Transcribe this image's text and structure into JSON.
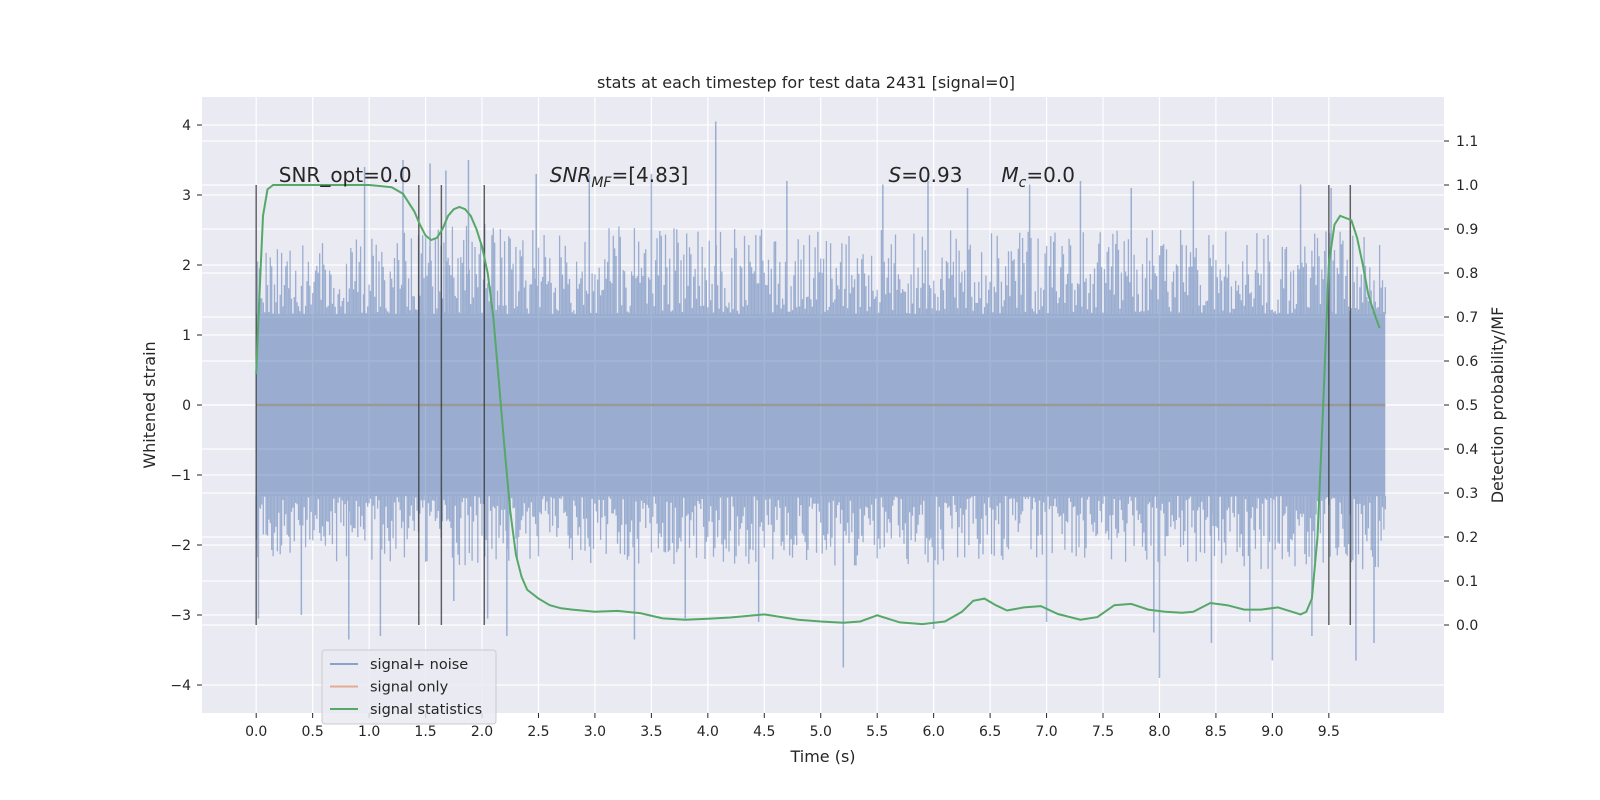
{
  "chart_data": {
    "type": "line",
    "title": "stats at each timestep for test data 2431 [signal=0]",
    "xlabel": "Time (s)",
    "ylabel_left": "Whitened strain",
    "ylabel_right": "Detection probability/MF",
    "xlim": [
      -0.48,
      10.52
    ],
    "ylim_left": [
      -4.4,
      4.4
    ],
    "ylim_right": [
      -0.2,
      1.2
    ],
    "x_ticks": [
      0.0,
      0.5,
      1.0,
      1.5,
      2.0,
      2.5,
      3.0,
      3.5,
      4.0,
      4.5,
      5.0,
      5.5,
      6.0,
      6.5,
      7.0,
      7.5,
      8.0,
      8.5,
      9.0,
      9.5
    ],
    "x_tick_labels": [
      "0.0",
      "0.5",
      "1.0",
      "1.5",
      "2.0",
      "2.5",
      "3.0",
      "3.5",
      "4.0",
      "4.5",
      "5.0",
      "5.5",
      "6.0",
      "6.5",
      "7.0",
      "7.5",
      "8.0",
      "8.5",
      "9.0",
      "9.5"
    ],
    "y_ticks_left": [
      -4,
      -3,
      -2,
      -1,
      0,
      1,
      2,
      3,
      4
    ],
    "y_tick_labels_left": [
      "−4",
      "−3",
      "−2",
      "−1",
      "0",
      "1",
      "2",
      "3",
      "4"
    ],
    "y_ticks_right": [
      0.0,
      0.1,
      0.2,
      0.3,
      0.4,
      0.5,
      0.6,
      0.7,
      0.8,
      0.9,
      1.0,
      1.1
    ],
    "y_tick_labels_right": [
      "0.0",
      "0.1",
      "0.2",
      "0.3",
      "0.4",
      "0.5",
      "0.6",
      "0.7",
      "0.8",
      "0.9",
      "1.0",
      "1.1"
    ],
    "grid": true,
    "legend_position": "lower-left",
    "annotations": [
      {
        "text": "SNR_opt=0.0",
        "x": 0.2,
        "y_right": 1.0
      },
      {
        "text_parts": [
          "SNR",
          "MF",
          "=[4.83]"
        ],
        "x": 2.6,
        "y_right": 1.0
      },
      {
        "text_parts": [
          "S",
          "=0.93"
        ],
        "x": 5.6,
        "y_right": 1.0
      },
      {
        "text_parts": [
          "M",
          "c",
          "=0.0"
        ],
        "x": 6.6,
        "y_right": 1.0
      }
    ],
    "series": [
      {
        "name": "signal+ noise",
        "color": "#4c72b0",
        "axis": "left",
        "kind": "noise_band",
        "x_range": [
          0.0,
          10.0
        ],
        "core_range": [
          -1.3,
          1.3
        ],
        "envelope_upper": [
          [
            0.0,
            2.2
          ],
          [
            2.0,
            2.6
          ],
          [
            5.0,
            2.5
          ],
          [
            8.0,
            2.5
          ],
          [
            10.0,
            2.5
          ]
        ],
        "envelope_lower": [
          [
            0.0,
            -2.2
          ],
          [
            2.0,
            -2.3
          ],
          [
            5.0,
            -2.3
          ],
          [
            8.0,
            -2.3
          ],
          [
            10.0,
            -2.4
          ]
        ],
        "spikes": [
          [
            0.02,
            -3.05
          ],
          [
            0.03,
            1.95
          ],
          [
            0.96,
            3.4
          ],
          [
            1.54,
            3.45
          ],
          [
            1.88,
            3.5
          ],
          [
            1.75,
            -2.8
          ],
          [
            2.22,
            -3.3
          ],
          [
            3.35,
            -3.35
          ],
          [
            4.07,
            4.05
          ],
          [
            5.2,
            -3.75
          ],
          [
            6.0,
            -3.2
          ],
          [
            8.0,
            -3.9
          ],
          [
            8.46,
            -3.4
          ],
          [
            9.0,
            -3.65
          ],
          [
            9.52,
            3.1
          ],
          [
            9.74,
            -3.65
          ],
          [
            9.9,
            -3.4
          ],
          [
            0.82,
            -3.35
          ],
          [
            1.1,
            -3.3
          ],
          [
            1.3,
            3.5
          ],
          [
            1.68,
            3.35
          ],
          [
            2.05,
            -3.05
          ],
          [
            2.48,
            3.3
          ],
          [
            2.95,
            3.3
          ],
          [
            3.5,
            3.3
          ],
          [
            4.45,
            -3.1
          ],
          [
            5.55,
            3.15
          ],
          [
            6.3,
            3.1
          ],
          [
            6.85,
            3.15
          ],
          [
            7.3,
            3.2
          ],
          [
            7.75,
            3.1
          ],
          [
            8.3,
            3.2
          ],
          [
            8.8,
            -3.1
          ],
          [
            9.25,
            3.15
          ],
          [
            0.4,
            -3.0
          ],
          [
            3.8,
            -3.05
          ],
          [
            4.7,
            3.2
          ],
          [
            5.95,
            3.2
          ],
          [
            7.0,
            -3.1
          ],
          [
            7.95,
            -3.25
          ],
          [
            9.35,
            -3.3
          ]
        ]
      },
      {
        "name": "signal only",
        "color": "#dd8452",
        "axis": "left",
        "x": [
          0.0,
          10.0
        ],
        "y": [
          0.0,
          0.0
        ]
      },
      {
        "name": "signal statistics",
        "color": "#55a868",
        "axis": "right",
        "x": [
          0.0,
          0.02,
          0.06,
          0.1,
          0.15,
          0.2,
          0.3,
          0.5,
          0.8,
          1.0,
          1.2,
          1.3,
          1.4,
          1.45,
          1.5,
          1.55,
          1.6,
          1.65,
          1.7,
          1.75,
          1.8,
          1.85,
          1.9,
          1.95,
          2.0,
          2.05,
          2.1,
          2.15,
          2.2,
          2.25,
          2.3,
          2.35,
          2.4,
          2.5,
          2.6,
          2.7,
          2.8,
          3.0,
          3.2,
          3.4,
          3.6,
          3.8,
          4.0,
          4.2,
          4.5,
          4.8,
          5.0,
          5.2,
          5.35,
          5.5,
          5.7,
          5.9,
          6.1,
          6.25,
          6.35,
          6.45,
          6.55,
          6.65,
          6.8,
          6.95,
          7.1,
          7.3,
          7.45,
          7.6,
          7.75,
          7.9,
          8.05,
          8.2,
          8.3,
          8.45,
          8.6,
          8.75,
          8.9,
          9.05,
          9.15,
          9.25,
          9.3,
          9.35,
          9.4,
          9.45,
          9.5,
          9.55,
          9.6,
          9.65,
          9.7,
          9.75,
          9.8,
          9.85,
          9.9,
          9.95
        ],
        "y": [
          0.57,
          0.7,
          0.93,
          0.99,
          1.0,
          1.0,
          1.0,
          1.0,
          1.0,
          1.0,
          0.995,
          0.98,
          0.94,
          0.91,
          0.885,
          0.875,
          0.88,
          0.9,
          0.93,
          0.945,
          0.95,
          0.945,
          0.93,
          0.9,
          0.86,
          0.8,
          0.7,
          0.55,
          0.4,
          0.26,
          0.16,
          0.11,
          0.08,
          0.06,
          0.045,
          0.038,
          0.035,
          0.03,
          0.032,
          0.027,
          0.015,
          0.012,
          0.014,
          0.017,
          0.024,
          0.012,
          0.008,
          0.005,
          0.008,
          0.022,
          0.006,
          0.002,
          0.008,
          0.03,
          0.055,
          0.06,
          0.045,
          0.033,
          0.04,
          0.043,
          0.025,
          0.012,
          0.018,
          0.045,
          0.048,
          0.035,
          0.03,
          0.028,
          0.03,
          0.05,
          0.045,
          0.035,
          0.035,
          0.04,
          0.032,
          0.024,
          0.03,
          0.06,
          0.2,
          0.5,
          0.82,
          0.91,
          0.93,
          0.925,
          0.92,
          0.88,
          0.82,
          0.75,
          0.71,
          0.675
        ]
      }
    ],
    "vertical_lines": {
      "color": "#333333",
      "x": [
        0.0,
        1.44,
        1.64,
        2.02,
        9.5,
        9.69
      ],
      "y_right_range": [
        0.0,
        1.0
      ]
    }
  }
}
